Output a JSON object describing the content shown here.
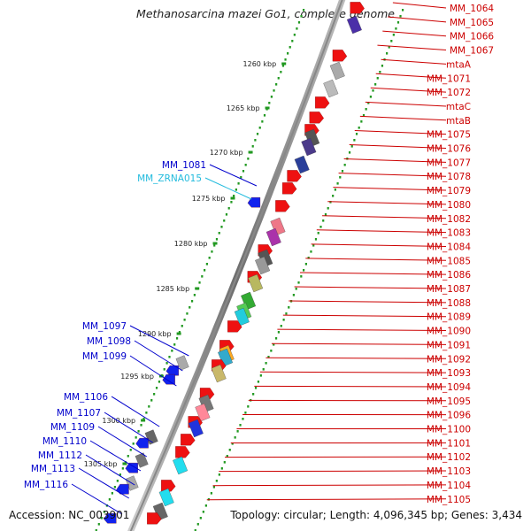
{
  "title": "Methanosarcina mazei Go1, complete genome",
  "footer": {
    "accession": "Accession: NC_003901",
    "topology": "Topology: circular; Length: 4,096,345 bp; Genes: 3,434"
  },
  "scale_ticks": [
    "1260 kbp",
    "1265 kbp",
    "1270 kbp",
    "1275 kbp",
    "1280 kbp",
    "1285 kbp",
    "1290 kbp",
    "1295 kbp",
    "1300 kbp",
    "1305 kbp"
  ],
  "right_labels": [
    "MM_1064",
    "MM_1065",
    "MM_1066",
    "MM_1067",
    "mtaA",
    "MM_1071",
    "MM_1072",
    "mtaC",
    "mtaB",
    "MM_1075",
    "MM_1076",
    "MM_1077",
    "MM_1078",
    "MM_1079",
    "MM_1080",
    "MM_1082",
    "MM_1083",
    "MM_1084",
    "MM_1085",
    "MM_1086",
    "MM_1087",
    "MM_1088",
    "MM_1089",
    "MM_1090",
    "MM_1091",
    "MM_1092",
    "MM_1093",
    "MM_1094",
    "MM_1095",
    "MM_1096",
    "MM_1100",
    "MM_1101",
    "MM_1102",
    "MM_1103",
    "MM_1104",
    "MM_1105"
  ],
  "left_labels": [
    {
      "text": "MM_1081",
      "color": "#0000cc"
    },
    {
      "text": "MM_ZRNA015",
      "color": "#22bbdd"
    },
    {
      "text": "MM_1097",
      "color": "#0000cc"
    },
    {
      "text": "MM_1098",
      "color": "#0000cc"
    },
    {
      "text": "MM_1099",
      "color": "#0000cc"
    },
    {
      "text": "MM_1106",
      "color": "#0000cc"
    },
    {
      "text": "MM_1107",
      "color": "#0000cc"
    },
    {
      "text": "MM_1109",
      "color": "#0000cc"
    },
    {
      "text": "MM_1110",
      "color": "#0000cc"
    },
    {
      "text": "MM_1112",
      "color": "#0000cc"
    },
    {
      "text": "MM_1113",
      "color": "#0000cc"
    },
    {
      "text": "MM_1116",
      "color": "#0000cc"
    }
  ],
  "colors": {
    "forward_gene": "#ee1111",
    "reverse_gene": "#1122ee",
    "label_forward": "#cc0000",
    "label_reverse": "#0000cc",
    "backbone": "#888888",
    "gc_track": "#229922"
  }
}
